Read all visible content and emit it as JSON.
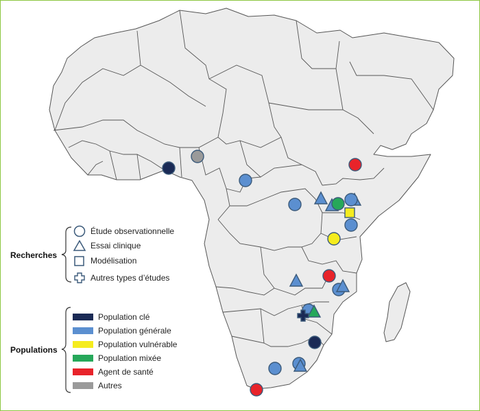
{
  "colors": {
    "frame": "#8cc63f",
    "land": "#ececec",
    "border": "#555555",
    "marker_outline": "#3b5a7a",
    "key_population": "#1a2a55",
    "general_population": "#5b8fd0",
    "vulnerable_population": "#f5ec1e",
    "mixed_population": "#26a85a",
    "health_worker": "#e8232a",
    "other": "#9a9a9a"
  },
  "legend": {
    "research": {
      "title": "Recherches",
      "items": [
        {
          "shape": "circle",
          "label": "Étude observationnelle"
        },
        {
          "shape": "triangle",
          "label": "Essai clinique"
        },
        {
          "shape": "square",
          "label": "Modélisation"
        },
        {
          "shape": "cross",
          "label": "Autres types d’études"
        }
      ]
    },
    "populations": {
      "title": "Populations",
      "items": [
        {
          "color": "key_population",
          "label": "Population clé"
        },
        {
          "color": "general_population",
          "label": "Population générale"
        },
        {
          "color": "vulnerable_population",
          "label": "Population vulnérable"
        },
        {
          "color": "mixed_population",
          "label": "Population mixée"
        },
        {
          "color": "health_worker",
          "label": "Agent de santé"
        },
        {
          "color": "other",
          "label": "Autres"
        }
      ]
    }
  },
  "markers": [
    {
      "shape": "circle",
      "population": "other"
    },
    {
      "shape": "circle",
      "population": "key_population"
    },
    {
      "shape": "circle",
      "population": "general_population"
    },
    {
      "shape": "circle",
      "population": "health_worker"
    },
    {
      "shape": "circle",
      "population": "general_population"
    },
    {
      "shape": "triangle",
      "population": "general_population"
    },
    {
      "shape": "triangle",
      "population": "general_population"
    },
    {
      "shape": "circle",
      "population": "general_population"
    },
    {
      "shape": "triangle",
      "population": "general_population"
    },
    {
      "shape": "circle",
      "population": "mixed_population"
    },
    {
      "shape": "square",
      "population": "vulnerable_population"
    },
    {
      "shape": "circle",
      "population": "general_population"
    },
    {
      "shape": "circle",
      "population": "vulnerable_population"
    },
    {
      "shape": "triangle",
      "population": "general_population"
    },
    {
      "shape": "circle",
      "population": "health_worker"
    },
    {
      "shape": "circle",
      "population": "general_population"
    },
    {
      "shape": "triangle",
      "population": "general_population"
    },
    {
      "shape": "circle",
      "population": "general_population"
    },
    {
      "shape": "triangle",
      "population": "mixed_population"
    },
    {
      "shape": "cross",
      "population": "key_population"
    },
    {
      "shape": "circle",
      "population": "key_population"
    },
    {
      "shape": "circle",
      "population": "general_population"
    },
    {
      "shape": "circle",
      "population": "general_population"
    },
    {
      "shape": "triangle",
      "population": "general_population"
    },
    {
      "shape": "circle",
      "population": "health_worker"
    }
  ]
}
